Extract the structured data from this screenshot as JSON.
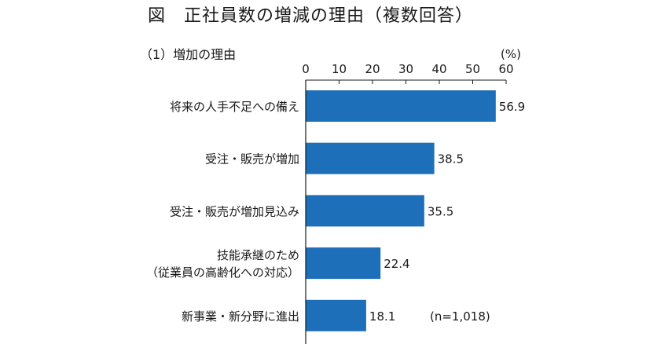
{
  "figure": {
    "title": "図　正社員数の増減の理由（複数回答）",
    "subtitle": "（1）増加の理由"
  },
  "chart_data": {
    "type": "bar",
    "orientation": "horizontal",
    "title": "",
    "xlabel": "",
    "ylabel": "",
    "unit": "(%)",
    "note": "(n=1,018)",
    "xlim": [
      0,
      60
    ],
    "ticks": [
      0,
      10,
      20,
      30,
      40,
      50,
      60
    ],
    "grid": false,
    "bar_color": "#1e6fba",
    "categories": [
      [
        "将来の人手不足への備え"
      ],
      [
        "受注・販売が増加"
      ],
      [
        "受注・販売が増加見込み"
      ],
      [
        "技能承継のため",
        "（従業員の高齢化への対応）"
      ],
      [
        "新事業・新分野に進出"
      ]
    ],
    "values": [
      56.9,
      38.5,
      35.5,
      22.4,
      18.1
    ],
    "value_labels": [
      "56.9",
      "38.5",
      "35.5",
      "22.4",
      "18.1"
    ]
  }
}
